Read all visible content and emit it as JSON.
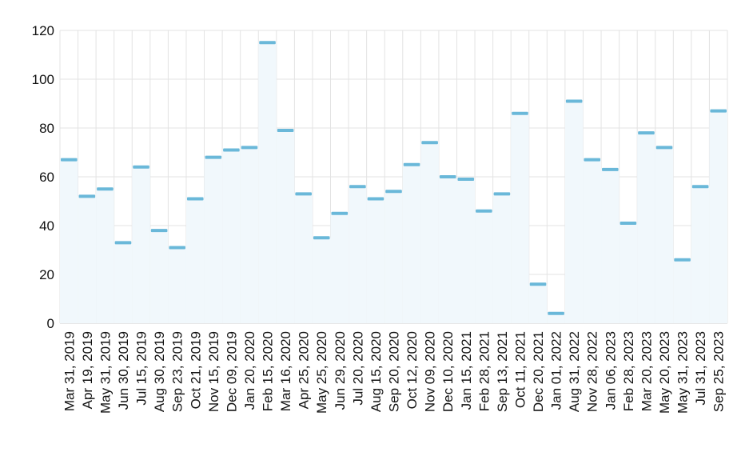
{
  "chart_data": {
    "type": "bar",
    "style": "step-area",
    "categories": [
      "Mar 31, 2019",
      "Apr 19, 2019",
      "May 31, 2019",
      "Jun 30, 2019",
      "Jul 15, 2019",
      "Aug 30, 2019",
      "Sep 23, 2019",
      "Oct 21, 2019",
      "Nov 15, 2019",
      "Dec 09, 2019",
      "Jan 20, 2020",
      "Feb 15, 2020",
      "Mar 16, 2020",
      "Apr 25, 2020",
      "May 25, 2020",
      "Jun 29, 2020",
      "Jul 20, 2020",
      "Aug 15, 2020",
      "Sep 20, 2020",
      "Oct 12, 2020",
      "Nov 09, 2020",
      "Dec 10, 2020",
      "Jan 15, 2021",
      "Feb 28, 2021",
      "Sep 13, 2021",
      "Oct 11, 2021",
      "Dec 20, 2021",
      "Jan 01, 2022",
      "Aug 31, 2022",
      "Nov 28, 2022",
      "Jan 06, 2023",
      "Feb 28, 2023",
      "Mar 20, 2023",
      "May 20, 2023",
      "May 31, 2023",
      "Jul 31, 2023",
      "Sep 25, 2023"
    ],
    "values": [
      67,
      52,
      55,
      33,
      64,
      38,
      31,
      51,
      68,
      71,
      72,
      115,
      79,
      53,
      35,
      45,
      56,
      51,
      54,
      65,
      74,
      60,
      59,
      46,
      53,
      86,
      16,
      4,
      91,
      67,
      63,
      41,
      78,
      72,
      26,
      56,
      87
    ],
    "yticks": [
      0,
      20,
      40,
      60,
      80,
      100,
      120
    ],
    "ylim": [
      0,
      120
    ],
    "title": "",
    "xlabel": "",
    "ylabel": "",
    "grid": true,
    "legend": "none",
    "colors": {
      "line": "#6ab8d9",
      "fill": "#f1f8fc",
      "grid": "#e3e3e3"
    }
  }
}
